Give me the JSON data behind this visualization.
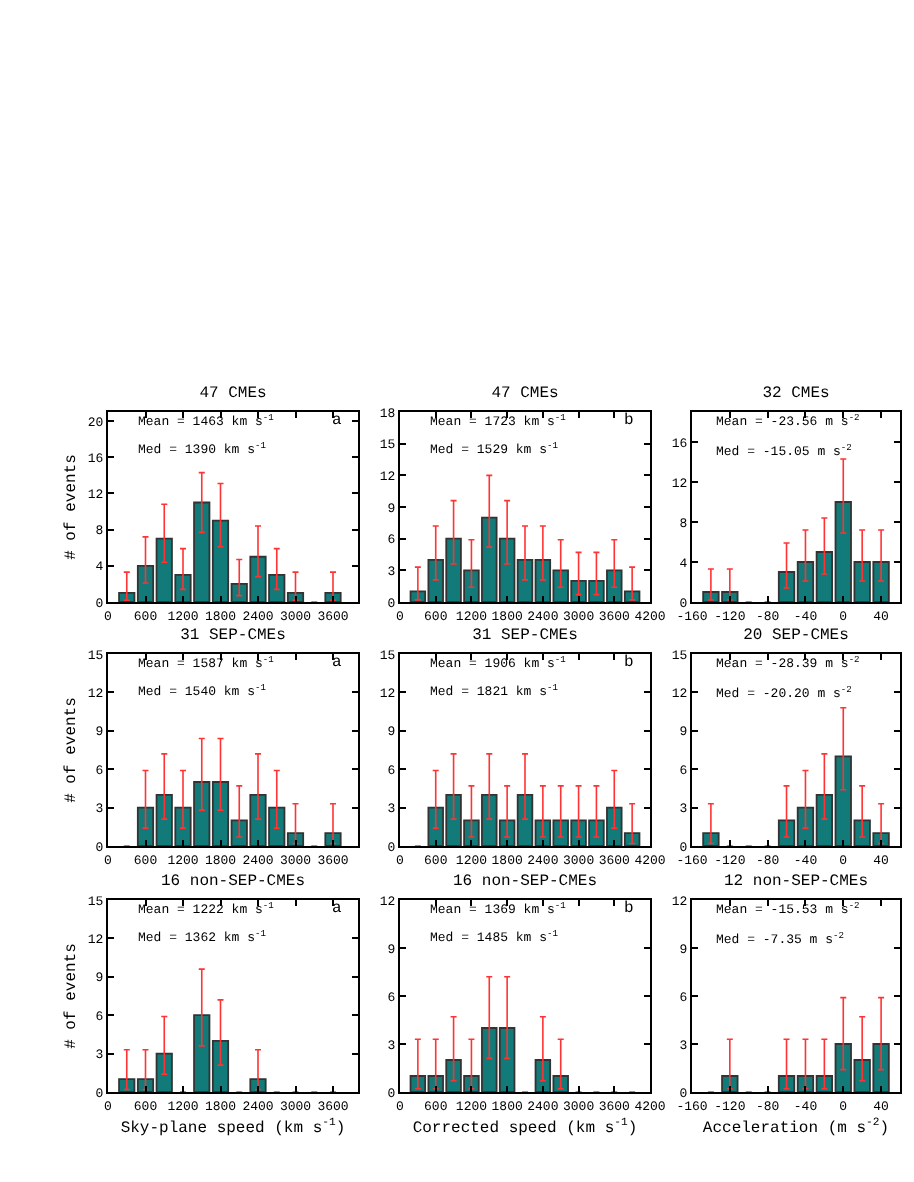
{
  "chart_data": [
    {
      "type": "histogram",
      "title": "47 CMEs",
      "annotations": [
        "Mean = 1463 km s$^{-1}$",
        "Med = 1390 km s$^{-1}$",
        "a"
      ],
      "ylabel": "# of events",
      "color": "#127a78",
      "bins": [
        150,
        450,
        750,
        1050,
        1350,
        1650,
        1950,
        2250,
        2550,
        2850,
        3150,
        3450,
        3750
      ],
      "values": [
        1,
        4,
        7,
        3,
        11,
        9,
        2,
        5,
        3,
        1,
        0,
        1
      ],
      "errors": [
        [
          0.2,
          3.3
        ],
        [
          2.1,
          7.2
        ],
        [
          4.4,
          10.8
        ],
        [
          1.4,
          5.9
        ],
        [
          7.7,
          14.3
        ],
        [
          6.1,
          13.1
        ],
        [
          0.7,
          4.7
        ],
        [
          2.8,
          8.4
        ],
        [
          1.4,
          5.9
        ],
        [
          0.2,
          3.3
        ],
        null,
        [
          0.2,
          3.3
        ]
      ],
      "xlim": [
        0,
        4000
      ],
      "xticks": [
        0,
        600,
        1200,
        1800,
        2400,
        3000,
        3600
      ],
      "ylim": [
        0,
        21
      ],
      "yticks": [
        0,
        4,
        8,
        12,
        16,
        20
      ]
    },
    {
      "type": "histogram",
      "title": "47 CMEs",
      "annotations": [
        "Mean = 1723 km s$^{-1}$",
        "Med = 1529 km s$^{-1}$",
        "b"
      ],
      "color": "#127a78",
      "bins": [
        150,
        450,
        750,
        1050,
        1350,
        1650,
        1950,
        2250,
        2550,
        2850,
        3150,
        3450,
        3750,
        4050
      ],
      "values": [
        1,
        4,
        6,
        3,
        8,
        6,
        4,
        4,
        3,
        2,
        2,
        3,
        1
      ],
      "errors": [
        [
          0.2,
          3.3
        ],
        [
          2.1,
          7.2
        ],
        [
          3.6,
          9.6
        ],
        [
          1.4,
          5.9
        ],
        [
          5.2,
          12.0
        ],
        [
          3.6,
          9.6
        ],
        [
          2.1,
          7.2
        ],
        [
          2.1,
          7.2
        ],
        [
          1.4,
          5.9
        ],
        [
          0.7,
          4.7
        ],
        [
          0.7,
          4.7
        ],
        [
          1.4,
          5.9
        ],
        [
          0.2,
          3.3
        ]
      ],
      "xlim": [
        0,
        4200
      ],
      "xticks": [
        0,
        600,
        1200,
        1800,
        2400,
        3000,
        3600,
        4200
      ],
      "ylim": [
        0,
        18
      ],
      "yticks": [
        0,
        3,
        6,
        9,
        12,
        15,
        18
      ]
    },
    {
      "type": "histogram",
      "title": "32 CMEs",
      "annotations": [
        "Mean = -23.56 m s$^{-2}$",
        "Med = -15.05 m s$^{-2}$"
      ],
      "color": "#127a78",
      "bins": [
        -150,
        -130,
        -110,
        -90,
        -70,
        -50,
        -30,
        -10,
        10,
        30,
        50
      ],
      "values": [
        1,
        1,
        0,
        0,
        3,
        4,
        5,
        10,
        4,
        4
      ],
      "errors": [
        [
          0.2,
          3.3
        ],
        [
          0.2,
          3.3
        ],
        null,
        null,
        [
          1.4,
          5.9
        ],
        [
          2.1,
          7.2
        ],
        [
          2.8,
          8.4
        ],
        [
          6.9,
          14.3
        ],
        [
          2.1,
          7.2
        ],
        [
          2.1,
          7.2
        ]
      ],
      "xlim": [
        -160,
        60
      ],
      "xticks": [
        -160,
        -120,
        -80,
        -40,
        0,
        40
      ],
      "ylim": [
        0,
        19
      ],
      "yticks": [
        0,
        4,
        8,
        12,
        16
      ]
    },
    {
      "type": "histogram",
      "title": "31 SEP-CMEs",
      "annotations": [
        "Mean = 1587 km s$^{-1}$",
        "Med = 1540 km s$^{-1}$",
        "a"
      ],
      "ylabel": "# of events",
      "color": "#127a78",
      "bins": [
        150,
        450,
        750,
        1050,
        1350,
        1650,
        1950,
        2250,
        2550,
        2850,
        3150,
        3450,
        3750
      ],
      "values": [
        0,
        3,
        4,
        3,
        5,
        5,
        2,
        4,
        3,
        1,
        0,
        1
      ],
      "errors": [
        null,
        [
          1.4,
          5.9
        ],
        [
          2.1,
          7.2
        ],
        [
          1.4,
          5.9
        ],
        [
          2.8,
          8.4
        ],
        [
          2.8,
          8.4
        ],
        [
          0.7,
          4.7
        ],
        [
          2.1,
          7.2
        ],
        [
          1.4,
          5.9
        ],
        [
          0.2,
          3.3
        ],
        null,
        [
          0.2,
          3.3
        ]
      ],
      "xlim": [
        0,
        4000
      ],
      "xticks": [
        0,
        600,
        1200,
        1800,
        2400,
        3000,
        3600
      ],
      "ylim": [
        0,
        15
      ],
      "yticks": [
        0,
        3,
        6,
        9,
        12,
        15
      ]
    },
    {
      "type": "histogram",
      "title": "31 SEP-CMEs",
      "annotations": [
        "Mean = 1906 km s$^{-1}$",
        "Med = 1821 km s$^{-1}$",
        "b"
      ],
      "color": "#127a78",
      "bins": [
        150,
        450,
        750,
        1050,
        1350,
        1650,
        1950,
        2250,
        2550,
        2850,
        3150,
        3450,
        3750,
        4050
      ],
      "values": [
        0,
        3,
        4,
        2,
        4,
        2,
        4,
        2,
        2,
        2,
        2,
        3,
        1
      ],
      "errors": [
        null,
        [
          1.4,
          5.9
        ],
        [
          2.1,
          7.2
        ],
        [
          0.7,
          4.7
        ],
        [
          2.1,
          7.2
        ],
        [
          0.7,
          4.7
        ],
        [
          2.1,
          7.2
        ],
        [
          0.7,
          4.7
        ],
        [
          0.7,
          4.7
        ],
        [
          0.7,
          4.7
        ],
        [
          0.7,
          4.7
        ],
        [
          1.4,
          5.9
        ],
        [
          0.2,
          3.3
        ]
      ],
      "xlim": [
        0,
        4200
      ],
      "xticks": [
        0,
        600,
        1200,
        1800,
        2400,
        3000,
        3600,
        4200
      ],
      "ylim": [
        0,
        15
      ],
      "yticks": [
        0,
        3,
        6,
        9,
        12,
        15
      ]
    },
    {
      "type": "histogram",
      "title": "20 SEP-CMEs",
      "annotations": [
        "Mean = -28.39 m s$^{-2}$",
        "Med = -20.20 m s$^{-2}$"
      ],
      "color": "#127a78",
      "bins": [
        -150,
        -130,
        -110,
        -90,
        -70,
        -50,
        -30,
        -10,
        10,
        30,
        50
      ],
      "values": [
        1,
        0,
        0,
        0,
        2,
        3,
        4,
        7,
        2,
        1
      ],
      "errors": [
        [
          0.2,
          3.3
        ],
        null,
        null,
        null,
        [
          0.7,
          4.7
        ],
        [
          1.4,
          5.9
        ],
        [
          2.1,
          7.2
        ],
        [
          4.4,
          10.8
        ],
        [
          0.7,
          4.7
        ],
        [
          0.2,
          3.3
        ]
      ],
      "xlim": [
        -160,
        60
      ],
      "xticks": [
        -160,
        -120,
        -80,
        -40,
        0,
        40
      ],
      "ylim": [
        0,
        15
      ],
      "yticks": [
        0,
        3,
        6,
        9,
        12,
        15
      ]
    },
    {
      "type": "histogram",
      "title": "16 non-SEP-CMEs",
      "annotations": [
        "Mean = 1222 km s$^{-1}$",
        "Med = 1362 km s$^{-1}$",
        "a"
      ],
      "ylabel": "# of events",
      "xlabel": "Sky-plane speed (km s$^{-1}$)",
      "color": "#127a78",
      "bins": [
        150,
        450,
        750,
        1050,
        1350,
        1650,
        1950,
        2250,
        2550,
        2850,
        3150,
        3450,
        3750
      ],
      "values": [
        1,
        1,
        3,
        0,
        6,
        4,
        0,
        1,
        0,
        0,
        0,
        0
      ],
      "errors": [
        [
          0.2,
          3.3
        ],
        [
          0.2,
          3.3
        ],
        [
          1.4,
          5.9
        ],
        null,
        [
          3.6,
          9.6
        ],
        [
          2.1,
          7.2
        ],
        null,
        [
          0.2,
          3.3
        ],
        null,
        null,
        null,
        null
      ],
      "xlim": [
        0,
        4000
      ],
      "xticks": [
        0,
        600,
        1200,
        1800,
        2400,
        3000,
        3600
      ],
      "ylim": [
        0,
        15
      ],
      "yticks": [
        0,
        3,
        6,
        9,
        12,
        15
      ]
    },
    {
      "type": "histogram",
      "title": "16 non-SEP-CMEs",
      "annotations": [
        "Mean = 1369 km s$^{-1}$",
        "Med = 1485 km s$^{-1}$",
        "b"
      ],
      "xlabel": "Corrected speed (km s$^{-1}$)",
      "color": "#127a78",
      "bins": [
        150,
        450,
        750,
        1050,
        1350,
        1650,
        1950,
        2250,
        2550,
        2850,
        3150,
        3450,
        3750,
        4050
      ],
      "values": [
        1,
        1,
        2,
        1,
        4,
        4,
        0,
        2,
        1,
        0,
        0,
        0,
        0
      ],
      "errors": [
        [
          0.2,
          3.3
        ],
        [
          0.2,
          3.3
        ],
        [
          0.7,
          4.7
        ],
        [
          0.2,
          3.3
        ],
        [
          2.1,
          7.2
        ],
        [
          2.1,
          7.2
        ],
        null,
        [
          0.7,
          4.7
        ],
        [
          0.2,
          3.3
        ],
        null,
        null,
        null,
        null
      ],
      "xlim": [
        0,
        4200
      ],
      "xticks": [
        0,
        600,
        1200,
        1800,
        2400,
        3000,
        3600,
        4200
      ],
      "ylim": [
        0,
        12
      ],
      "yticks": [
        0,
        3,
        6,
        9,
        12
      ]
    },
    {
      "type": "histogram",
      "title": "12 non-SEP-CMEs",
      "annotations": [
        "Mean = -15.53 m s$^{-2}$",
        "Med = -7.35 m s$^{-2}$"
      ],
      "xlabel": "Acceleration (m s$^{-2}$)",
      "color": "#127a78",
      "bins": [
        -150,
        -130,
        -110,
        -90,
        -70,
        -50,
        -30,
        -10,
        10,
        30,
        50
      ],
      "values": [
        0,
        1,
        0,
        0,
        1,
        1,
        1,
        3,
        2,
        3
      ],
      "errors": [
        null,
        [
          0.2,
          3.3
        ],
        null,
        null,
        [
          0.2,
          3.3
        ],
        [
          0.2,
          3.3
        ],
        [
          0.2,
          3.3
        ],
        [
          1.4,
          5.9
        ],
        [
          0.7,
          4.7
        ],
        [
          1.4,
          5.9
        ]
      ],
      "xlim": [
        -160,
        60
      ],
      "xticks": [
        -160,
        -120,
        -80,
        -40,
        0,
        40
      ],
      "ylim": [
        0,
        12
      ],
      "yticks": [
        0,
        3,
        6,
        9,
        12
      ]
    }
  ]
}
